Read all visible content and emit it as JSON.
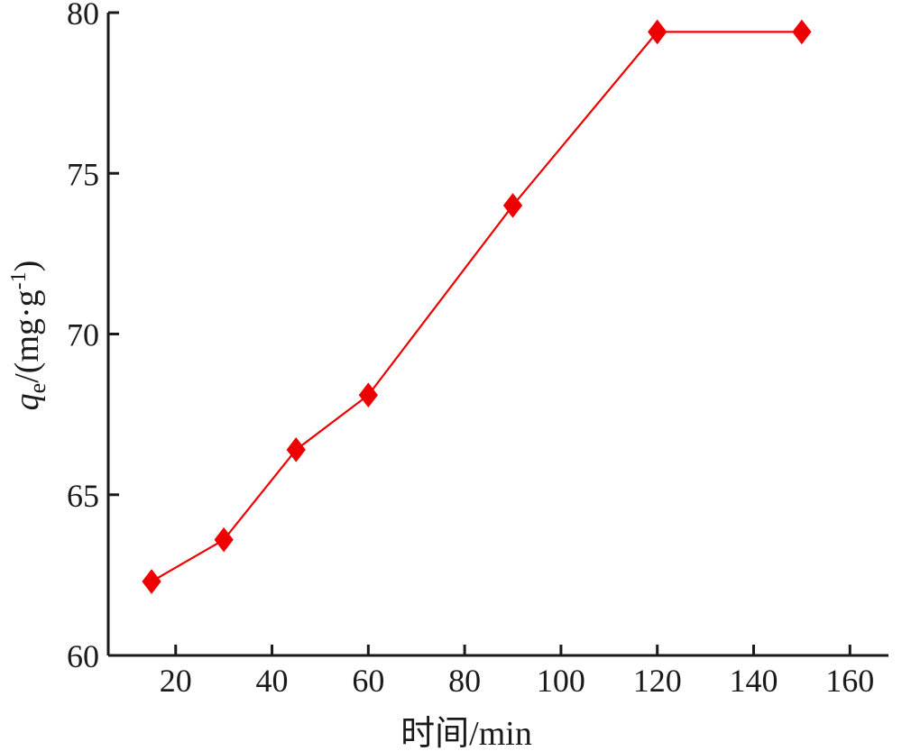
{
  "chart_data": {
    "type": "line",
    "x": [
      15,
      30,
      45,
      60,
      90,
      120,
      150
    ],
    "series": [
      {
        "values": [
          62.3,
          63.6,
          66.4,
          68.1,
          74.0,
          79.4,
          79.4
        ],
        "color": "#ee0000",
        "marker": "diamond"
      }
    ],
    "xlabel": "时间/min",
    "ylabel": {
      "symbol": "q",
      "subscript": "e",
      "unit_prefix": "/(mg·g",
      "superscript": "-1",
      "unit_suffix": ")"
    },
    "xlim": [
      6,
      168
    ],
    "ylim": [
      60,
      80
    ],
    "xticks": [
      20,
      40,
      60,
      80,
      100,
      120,
      140,
      160
    ],
    "yticks": [
      60,
      65,
      70,
      75,
      80
    ],
    "grid": false,
    "legend": false
  }
}
